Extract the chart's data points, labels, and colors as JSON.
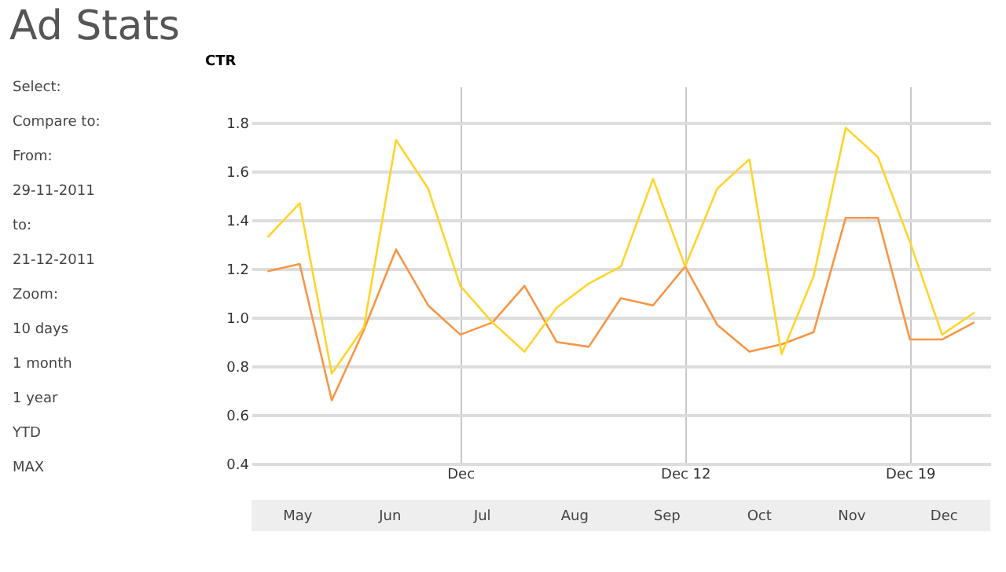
{
  "chart_data": {
    "type": "line",
    "title": "Ad Stats",
    "ylabel": "CTR",
    "x": [
      "2011-11-29",
      "2011-11-30",
      "2011-12-01",
      "2011-12-02",
      "2011-12-03",
      "2011-12-04",
      "2011-12-05",
      "2011-12-06",
      "2011-12-07",
      "2011-12-08",
      "2011-12-09",
      "2011-12-10",
      "2011-12-11",
      "2011-12-12",
      "2011-12-13",
      "2011-12-14",
      "2011-12-15",
      "2011-12-16",
      "2011-12-17",
      "2011-12-18",
      "2011-12-19",
      "2011-12-20",
      "2011-12-21"
    ],
    "series": [
      {
        "color": "#f79646",
        "values": [
          1.19,
          1.22,
          0.66,
          0.95,
          1.28,
          1.05,
          0.93,
          0.98,
          1.13,
          0.9,
          0.88,
          1.08,
          1.05,
          1.21,
          0.97,
          0.86,
          0.89,
          0.94,
          1.41,
          1.41,
          0.91,
          0.91,
          0.98
        ]
      },
      {
        "color": "#ffd42a",
        "values": [
          1.33,
          1.47,
          0.77,
          0.96,
          1.73,
          1.53,
          1.13,
          0.98,
          0.86,
          1.04,
          1.14,
          1.21,
          1.57,
          1.21,
          1.53,
          1.65,
          0.85,
          1.17,
          1.78,
          1.66,
          1.31,
          0.93,
          1.02
        ]
      }
    ],
    "xlim": [
      "2011-11-28T12:00",
      "2011-12-21T12:00"
    ],
    "xticks": [
      {
        "value": "2011-12-05",
        "label": "Dec"
      },
      {
        "value": "2011-12-12",
        "label": "Dec 12"
      },
      {
        "value": "2011-12-19",
        "label": "Dec 19"
      }
    ],
    "ylim": [
      0.4,
      1.95
    ],
    "yticks": [
      {
        "value": 0.4,
        "label": "0.4"
      },
      {
        "value": 0.6,
        "label": "0.6"
      },
      {
        "value": 0.8,
        "label": "0.8"
      },
      {
        "value": 1.0,
        "label": "1.0"
      },
      {
        "value": 1.2,
        "label": "1.2"
      },
      {
        "value": 1.4,
        "label": "1.4"
      },
      {
        "value": 1.6,
        "label": "1.6"
      },
      {
        "value": 1.8,
        "label": "1.8"
      }
    ],
    "grid": true,
    "legend": false,
    "marker": "none",
    "line_style": "solid",
    "annotations": [
      "Select:",
      "Compare to:",
      "From:",
      "29-11-2011",
      "to:",
      "21-12-2011",
      "Zoom:",
      "10 days",
      "1 month",
      "1 year",
      "YTD",
      "MAX",
      "May",
      "Jun",
      "Jul",
      "Aug",
      "Sep",
      "Oct",
      "Nov",
      "Dec"
    ]
  }
}
